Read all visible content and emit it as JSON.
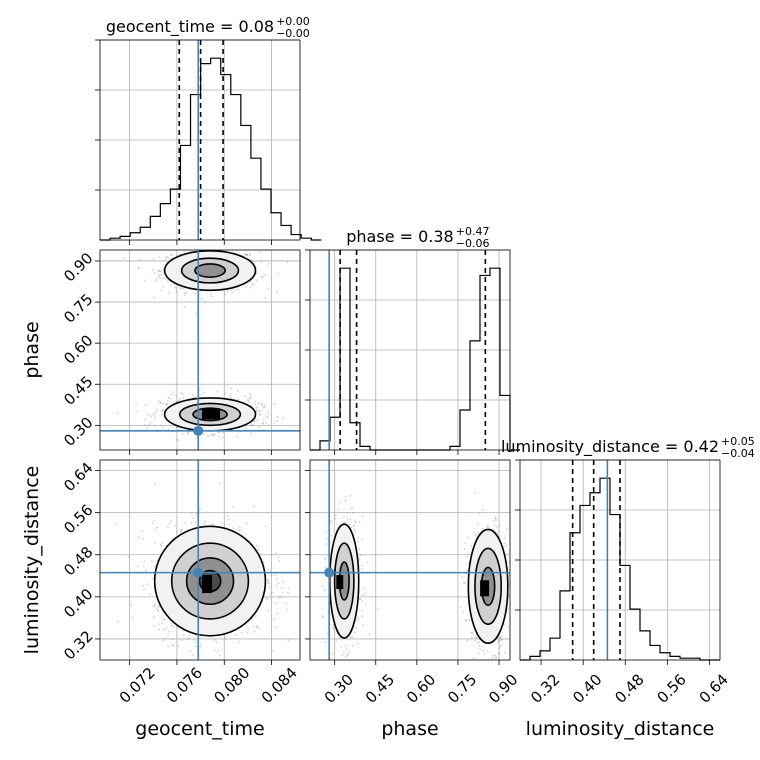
{
  "chart_data": {
    "type": "corner",
    "parameters": [
      "geocent_time",
      "phase",
      "luminosity_distance"
    ],
    "truths": {
      "geocent_time": 0.0778,
      "phase": 0.28,
      "luminosity_distance": 0.446
    },
    "truth_color": "#4682b4",
    "ranges": {
      "geocent_time": [
        0.0695,
        0.0864
      ],
      "phase": [
        0.21,
        0.94
      ],
      "luminosity_distance": [
        0.28,
        0.66
      ]
    },
    "ticks": {
      "geocent_time": [
        "0.072",
        "0.076",
        "0.080",
        "0.084"
      ],
      "phase": [
        "0.30",
        "0.45",
        "0.60",
        "0.75",
        "0.90"
      ],
      "luminosity_distance": [
        "0.32",
        "0.40",
        "0.48",
        "0.56",
        "0.64"
      ]
    },
    "axis_labels": {
      "x": [
        "geocent_time",
        "phase",
        "luminosity_distance"
      ],
      "y": [
        "phase",
        "luminosity_distance"
      ]
    },
    "titles": [
      {
        "param": "geocent_time",
        "text": "geocent_time = 0.08",
        "sup": "+0.00",
        "sub": "−0.00"
      },
      {
        "param": "phase",
        "text": "phase = 0.38",
        "sup": "+0.47",
        "sub": "−0.06"
      },
      {
        "param": "luminosity_distance",
        "text": "luminosity_distance = 0.42",
        "sup": "+0.05",
        "sub": "−0.04"
      }
    ],
    "quantiles": {
      "geocent_time": [
        0.0762,
        0.078,
        0.0799
      ],
      "phase": [
        0.32,
        0.38,
        0.85
      ],
      "luminosity_distance": [
        0.38,
        0.42,
        0.47
      ]
    },
    "histograms": {
      "geocent_time": {
        "edges_start": 0.0695,
        "bin_width": 0.00085,
        "counts": [
          0,
          1,
          2,
          4,
          7,
          13,
          20,
          28,
          52,
          80,
          97,
          100,
          91,
          80,
          63,
          45,
          28,
          15,
          8,
          3,
          1,
          0
        ]
      },
      "phase": {
        "edges_start": 0.21,
        "bin_width": 0.0365,
        "counts": [
          0,
          5,
          18,
          100,
          15,
          2,
          0,
          0,
          0,
          0,
          0,
          0,
          0,
          0,
          2,
          22,
          60,
          96,
          100,
          30,
          0
        ]
      },
      "luminosity_distance": {
        "edges_start": 0.28,
        "bin_width": 0.019,
        "counts": [
          0,
          2,
          5,
          12,
          38,
          70,
          85,
          92,
          100,
          80,
          52,
          28,
          16,
          8,
          4,
          2,
          1,
          1,
          0,
          0
        ]
      }
    },
    "grid": true
  }
}
